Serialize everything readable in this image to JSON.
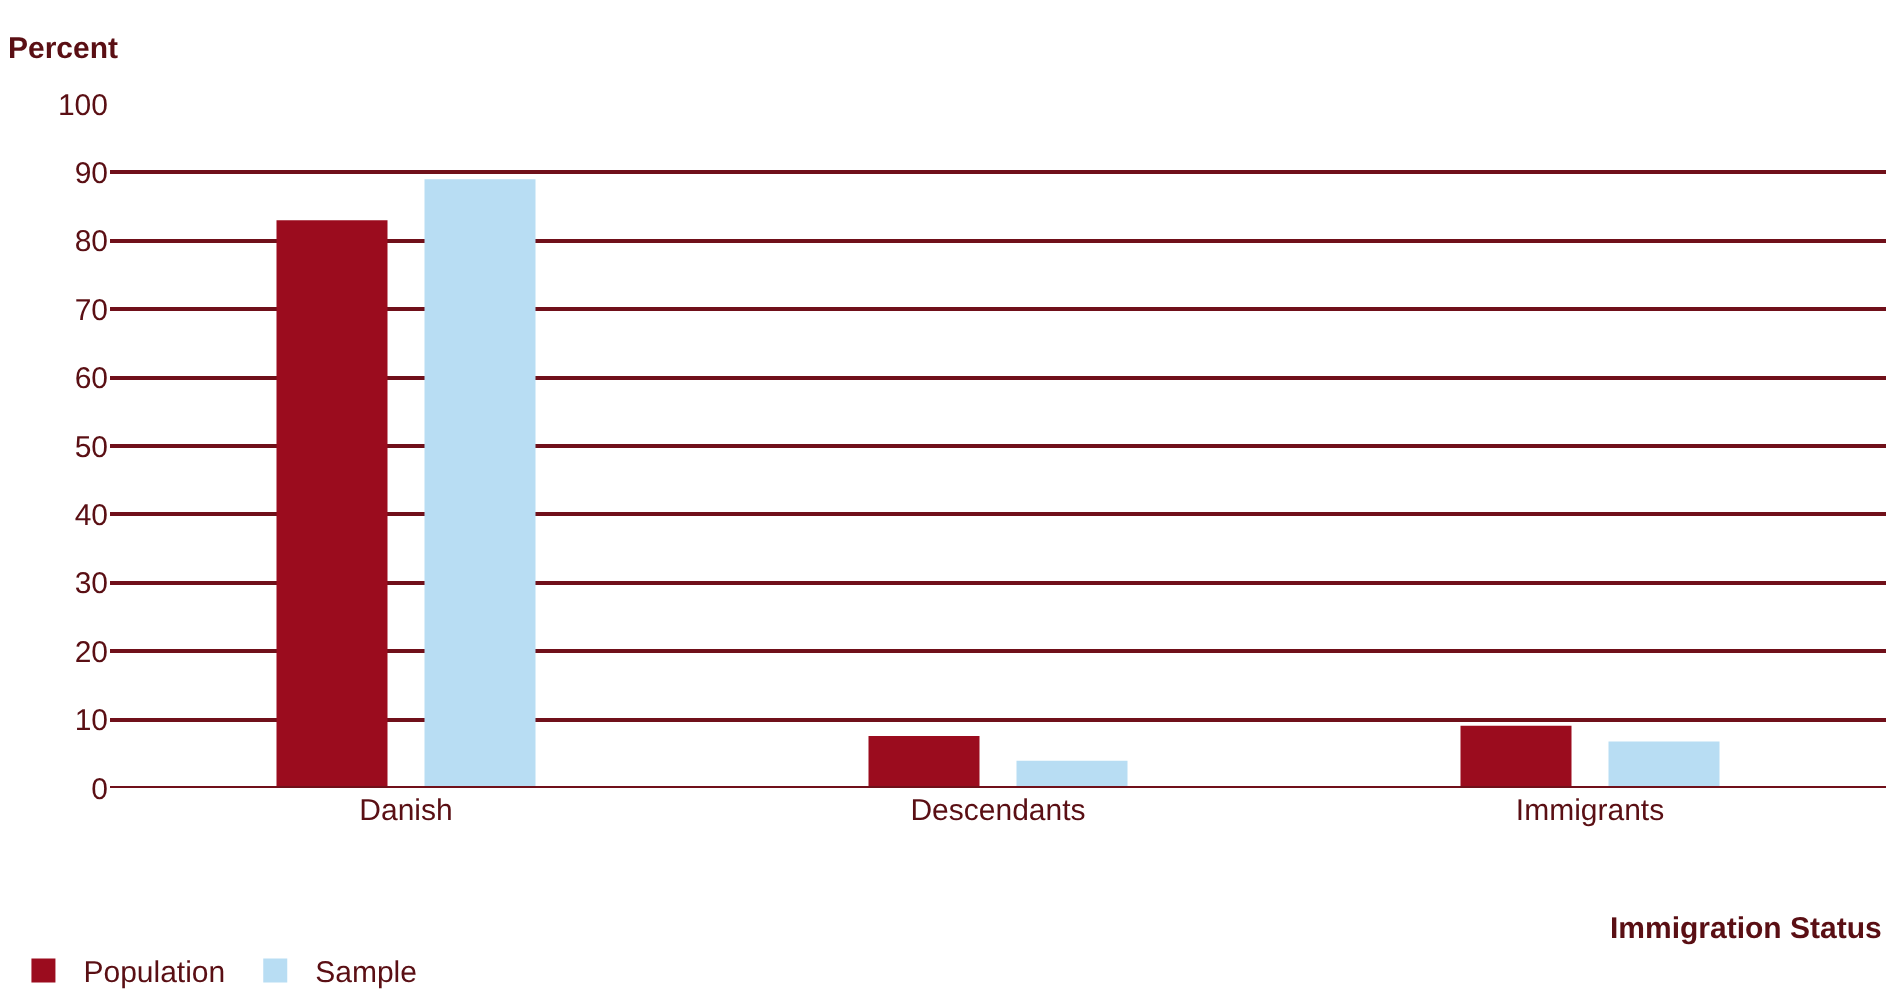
{
  "chart_data": {
    "type": "bar",
    "ylabel": "Percent",
    "xlabel": "Immigration Status",
    "categories": [
      "Danish",
      "Descendants",
      "Immigrants"
    ],
    "series": [
      {
        "name": "Population",
        "color": "#9b0c1e",
        "values": [
          83,
          7.6,
          9.1
        ]
      },
      {
        "name": "Sample",
        "color": "#b8ddf3",
        "values": [
          89,
          4.0,
          6.8
        ]
      }
    ],
    "ylim": [
      0,
      100
    ],
    "yticks": [
      0,
      10,
      20,
      30,
      40,
      50,
      60,
      70,
      80,
      90,
      100
    ],
    "grid": "y",
    "legend": "bottom left"
  }
}
